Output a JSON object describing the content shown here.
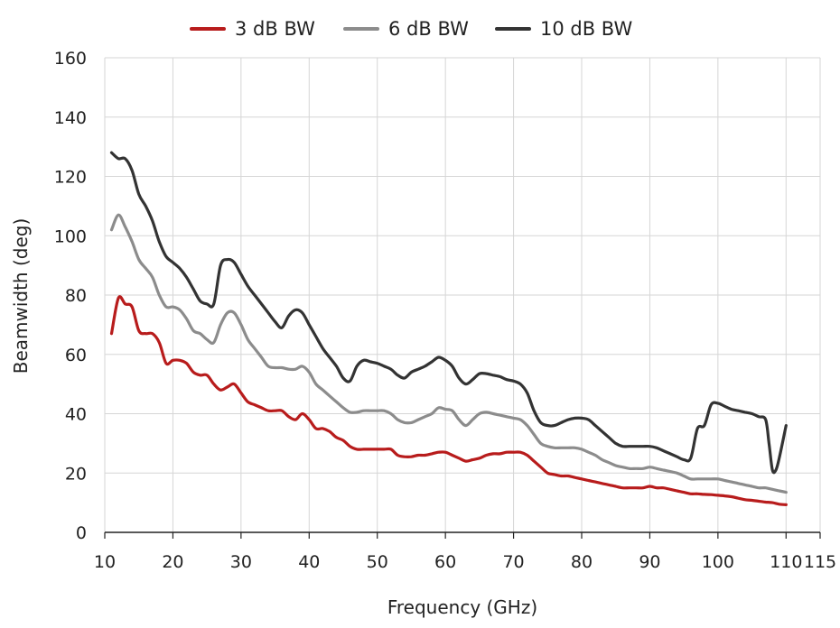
{
  "chart_data": {
    "type": "line",
    "title": "",
    "xlabel": "Frequency (GHz)",
    "ylabel": "Beamwidth (deg)",
    "xlim": [
      10,
      115
    ],
    "ylim": [
      0,
      160
    ],
    "xticks": [
      10,
      20,
      30,
      40,
      50,
      60,
      70,
      80,
      90,
      100,
      110,
      115
    ],
    "yticks": [
      0,
      20,
      40,
      60,
      80,
      100,
      120,
      140,
      160
    ],
    "grid": true,
    "legend_position": "top",
    "series": [
      {
        "name": "3 dB BW",
        "color": "#b81c1c",
        "points": [
          [
            11,
            67
          ],
          [
            12,
            79
          ],
          [
            13,
            77
          ],
          [
            14,
            76
          ],
          [
            15,
            68
          ],
          [
            16,
            67
          ],
          [
            17,
            67
          ],
          [
            18,
            64
          ],
          [
            19,
            57
          ],
          [
            20,
            58
          ],
          [
            21,
            58
          ],
          [
            22,
            57
          ],
          [
            23,
            54
          ],
          [
            24,
            53
          ],
          [
            25,
            53
          ],
          [
            26,
            50
          ],
          [
            27,
            48
          ],
          [
            28,
            49
          ],
          [
            29,
            50
          ],
          [
            30,
            47
          ],
          [
            31,
            44
          ],
          [
            32,
            43
          ],
          [
            33,
            42
          ],
          [
            34,
            41
          ],
          [
            35,
            41
          ],
          [
            36,
            41
          ],
          [
            37,
            39
          ],
          [
            38,
            38
          ],
          [
            39,
            40
          ],
          [
            40,
            38
          ],
          [
            41,
            35
          ],
          [
            42,
            35
          ],
          [
            43,
            34
          ],
          [
            44,
            32
          ],
          [
            45,
            31
          ],
          [
            46,
            29
          ],
          [
            47,
            28
          ],
          [
            48,
            28
          ],
          [
            49,
            28
          ],
          [
            50,
            28
          ],
          [
            51,
            28
          ],
          [
            52,
            28
          ],
          [
            53,
            26
          ],
          [
            54,
            25.5
          ],
          [
            55,
            25.5
          ],
          [
            56,
            26
          ],
          [
            57,
            26
          ],
          [
            58,
            26.5
          ],
          [
            59,
            27
          ],
          [
            60,
            27
          ],
          [
            61,
            26
          ],
          [
            62,
            25
          ],
          [
            63,
            24
          ],
          [
            64,
            24.5
          ],
          [
            65,
            25
          ],
          [
            66,
            26
          ],
          [
            67,
            26.5
          ],
          [
            68,
            26.5
          ],
          [
            69,
            27
          ],
          [
            70,
            27
          ],
          [
            71,
            27
          ],
          [
            72,
            26
          ],
          [
            73,
            24
          ],
          [
            74,
            22
          ],
          [
            75,
            20
          ],
          [
            76,
            19.5
          ],
          [
            77,
            19
          ],
          [
            78,
            19
          ],
          [
            79,
            18.5
          ],
          [
            80,
            18
          ],
          [
            81,
            17.5
          ],
          [
            82,
            17
          ],
          [
            83,
            16.5
          ],
          [
            84,
            16
          ],
          [
            85,
            15.5
          ],
          [
            86,
            15
          ],
          [
            87,
            15
          ],
          [
            88,
            15
          ],
          [
            89,
            15
          ],
          [
            90,
            15.5
          ],
          [
            91,
            15
          ],
          [
            92,
            15
          ],
          [
            93,
            14.5
          ],
          [
            94,
            14
          ],
          [
            95,
            13.5
          ],
          [
            96,
            13
          ],
          [
            97,
            13
          ],
          [
            98,
            12.8
          ],
          [
            99,
            12.7
          ],
          [
            100,
            12.5
          ],
          [
            101,
            12.3
          ],
          [
            102,
            12
          ],
          [
            103,
            11.5
          ],
          [
            104,
            11
          ],
          [
            105,
            10.8
          ],
          [
            106,
            10.5
          ],
          [
            107,
            10.2
          ],
          [
            108,
            10
          ],
          [
            109,
            9.5
          ],
          [
            110,
            9.3
          ]
        ]
      },
      {
        "name": "6 dB BW",
        "color": "#8c8c8c",
        "points": [
          [
            11,
            102
          ],
          [
            12,
            107
          ],
          [
            13,
            103
          ],
          [
            14,
            98
          ],
          [
            15,
            92
          ],
          [
            16,
            89
          ],
          [
            17,
            86
          ],
          [
            18,
            80
          ],
          [
            19,
            76
          ],
          [
            20,
            76
          ],
          [
            21,
            75
          ],
          [
            22,
            72
          ],
          [
            23,
            68
          ],
          [
            24,
            67
          ],
          [
            25,
            65
          ],
          [
            26,
            64
          ],
          [
            27,
            70
          ],
          [
            28,
            74
          ],
          [
            29,
            74
          ],
          [
            30,
            70
          ],
          [
            31,
            65
          ],
          [
            32,
            62
          ],
          [
            33,
            59
          ],
          [
            34,
            56
          ],
          [
            35,
            55.5
          ],
          [
            36,
            55.5
          ],
          [
            37,
            55
          ],
          [
            38,
            55
          ],
          [
            39,
            56
          ],
          [
            40,
            54
          ],
          [
            41,
            50
          ],
          [
            42,
            48
          ],
          [
            43,
            46
          ],
          [
            44,
            44
          ],
          [
            45,
            42
          ],
          [
            46,
            40.5
          ],
          [
            47,
            40.5
          ],
          [
            48,
            41
          ],
          [
            49,
            41
          ],
          [
            50,
            41
          ],
          [
            51,
            41
          ],
          [
            52,
            40
          ],
          [
            53,
            38
          ],
          [
            54,
            37
          ],
          [
            55,
            37
          ],
          [
            56,
            38
          ],
          [
            57,
            39
          ],
          [
            58,
            40
          ],
          [
            59,
            42
          ],
          [
            60,
            41.5
          ],
          [
            61,
            41
          ],
          [
            62,
            38
          ],
          [
            63,
            36
          ],
          [
            64,
            38
          ],
          [
            65,
            40
          ],
          [
            66,
            40.5
          ],
          [
            67,
            40
          ],
          [
            68,
            39.5
          ],
          [
            69,
            39
          ],
          [
            70,
            38.5
          ],
          [
            71,
            38
          ],
          [
            72,
            36
          ],
          [
            73,
            33
          ],
          [
            74,
            30
          ],
          [
            75,
            29
          ],
          [
            76,
            28.5
          ],
          [
            77,
            28.5
          ],
          [
            78,
            28.5
          ],
          [
            79,
            28.5
          ],
          [
            80,
            28
          ],
          [
            81,
            27
          ],
          [
            82,
            26
          ],
          [
            83,
            24.5
          ],
          [
            84,
            23.5
          ],
          [
            85,
            22.5
          ],
          [
            86,
            22
          ],
          [
            87,
            21.5
          ],
          [
            88,
            21.5
          ],
          [
            89,
            21.5
          ],
          [
            90,
            22
          ],
          [
            91,
            21.5
          ],
          [
            92,
            21
          ],
          [
            93,
            20.5
          ],
          [
            94,
            20
          ],
          [
            95,
            19
          ],
          [
            96,
            18
          ],
          [
            97,
            18
          ],
          [
            98,
            18
          ],
          [
            99,
            18
          ],
          [
            100,
            18
          ],
          [
            101,
            17.5
          ],
          [
            102,
            17
          ],
          [
            103,
            16.5
          ],
          [
            104,
            16
          ],
          [
            105,
            15.5
          ],
          [
            106,
            15
          ],
          [
            107,
            15
          ],
          [
            108,
            14.5
          ],
          [
            109,
            14
          ],
          [
            110,
            13.5
          ]
        ]
      },
      {
        "name": "10 dB BW",
        "color": "#333333",
        "points": [
          [
            11,
            128
          ],
          [
            12,
            126
          ],
          [
            13,
            126
          ],
          [
            14,
            122
          ],
          [
            15,
            114
          ],
          [
            16,
            110
          ],
          [
            17,
            105
          ],
          [
            18,
            98
          ],
          [
            19,
            93
          ],
          [
            20,
            91
          ],
          [
            21,
            89
          ],
          [
            22,
            86
          ],
          [
            23,
            82
          ],
          [
            24,
            78
          ],
          [
            25,
            77
          ],
          [
            26,
            77
          ],
          [
            27,
            90
          ],
          [
            28,
            92
          ],
          [
            29,
            91
          ],
          [
            30,
            87
          ],
          [
            31,
            83
          ],
          [
            32,
            80
          ],
          [
            33,
            77
          ],
          [
            34,
            74
          ],
          [
            35,
            71
          ],
          [
            36,
            69
          ],
          [
            37,
            73
          ],
          [
            38,
            75
          ],
          [
            39,
            74
          ],
          [
            40,
            70
          ],
          [
            41,
            66
          ],
          [
            42,
            62
          ],
          [
            43,
            59
          ],
          [
            44,
            56
          ],
          [
            45,
            52
          ],
          [
            46,
            51
          ],
          [
            47,
            56
          ],
          [
            48,
            58
          ],
          [
            49,
            57.5
          ],
          [
            50,
            57
          ],
          [
            51,
            56
          ],
          [
            52,
            55
          ],
          [
            53,
            53
          ],
          [
            54,
            52
          ],
          [
            55,
            54
          ],
          [
            56,
            55
          ],
          [
            57,
            56
          ],
          [
            58,
            57.5
          ],
          [
            59,
            59
          ],
          [
            60,
            58
          ],
          [
            61,
            56
          ],
          [
            62,
            52
          ],
          [
            63,
            50
          ],
          [
            64,
            51.5
          ],
          [
            65,
            53.5
          ],
          [
            66,
            53.5
          ],
          [
            67,
            53
          ],
          [
            68,
            52.5
          ],
          [
            69,
            51.5
          ],
          [
            70,
            51
          ],
          [
            71,
            50
          ],
          [
            72,
            47
          ],
          [
            73,
            41
          ],
          [
            74,
            37
          ],
          [
            75,
            36
          ],
          [
            76,
            36
          ],
          [
            77,
            37
          ],
          [
            78,
            38
          ],
          [
            79,
            38.5
          ],
          [
            80,
            38.5
          ],
          [
            81,
            38
          ],
          [
            82,
            36
          ],
          [
            83,
            34
          ],
          [
            84,
            32
          ],
          [
            85,
            30
          ],
          [
            86,
            29
          ],
          [
            87,
            29
          ],
          [
            88,
            29
          ],
          [
            89,
            29
          ],
          [
            90,
            29
          ],
          [
            91,
            28.5
          ],
          [
            92,
            27.5
          ],
          [
            93,
            26.5
          ],
          [
            94,
            25.5
          ],
          [
            95,
            24.5
          ],
          [
            96,
            25
          ],
          [
            97,
            35
          ],
          [
            98,
            36
          ],
          [
            99,
            43
          ],
          [
            100,
            43.5
          ],
          [
            101,
            42.5
          ],
          [
            102,
            41.5
          ],
          [
            103,
            41
          ],
          [
            104,
            40.5
          ],
          [
            105,
            40
          ],
          [
            106,
            39
          ],
          [
            107,
            38
          ],
          [
            107.5,
            30
          ],
          [
            108,
            21
          ],
          [
            108.5,
            21
          ],
          [
            109,
            25
          ],
          [
            110,
            36
          ]
        ]
      }
    ]
  }
}
